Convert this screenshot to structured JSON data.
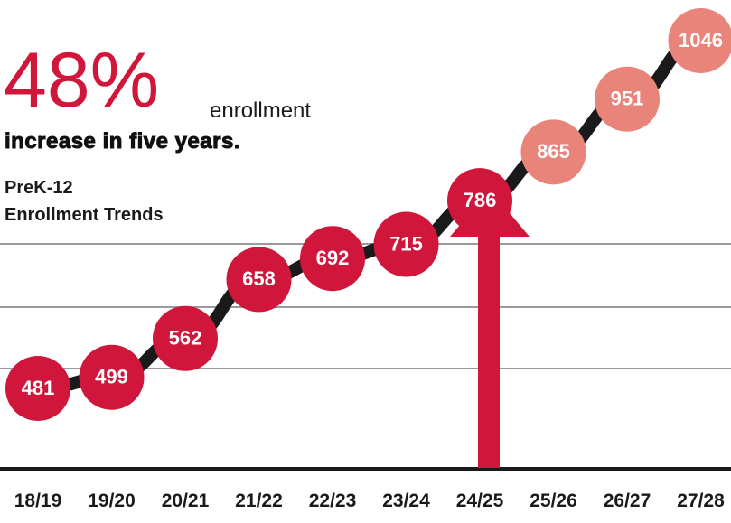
{
  "chart_data": {
    "type": "line",
    "headline": "48%",
    "headline_suffix": "enrollment",
    "subtitle": "increase in five years.",
    "title_lines": [
      "PreK-12",
      "Enrollment Trends"
    ],
    "categories": [
      "18/19",
      "19/20",
      "20/21",
      "21/22",
      "22/23",
      "23/24",
      "24/25",
      "25/26",
      "26/27",
      "27/28"
    ],
    "values": [
      481,
      499,
      562,
      658,
      692,
      715,
      786,
      865,
      951,
      1046
    ],
    "line_color": "#1a1a1a",
    "point_colors": [
      "#d0163b",
      "#d0163b",
      "#d0163b",
      "#d0163b",
      "#d0163b",
      "#d0163b",
      "#d0163b",
      "#e8847a",
      "#e8847a",
      "#e8847a"
    ]
  }
}
